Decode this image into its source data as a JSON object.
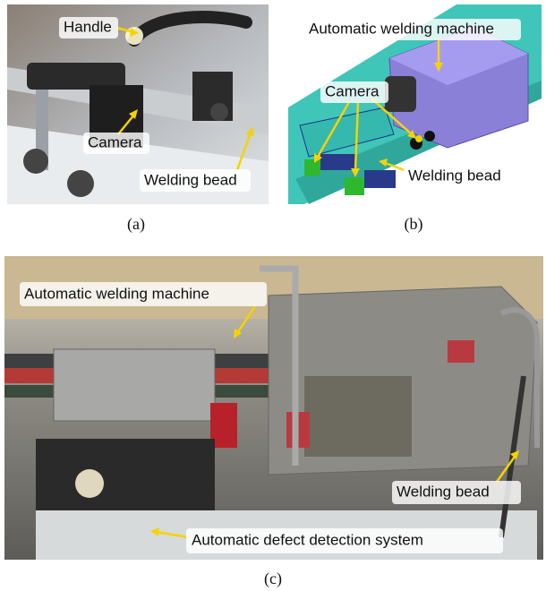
{
  "panels": [
    {
      "caption": "(a)",
      "labels": [
        "Handle",
        "Camera",
        "Welding bead"
      ]
    },
    {
      "caption": "(b)",
      "labels": [
        "Automatic welding machine",
        "Camera",
        "Welding bead"
      ]
    },
    {
      "caption": "(c)",
      "labels": [
        "Automatic welding machine",
        "Welding bead",
        "Automatic defect detection system"
      ]
    }
  ]
}
